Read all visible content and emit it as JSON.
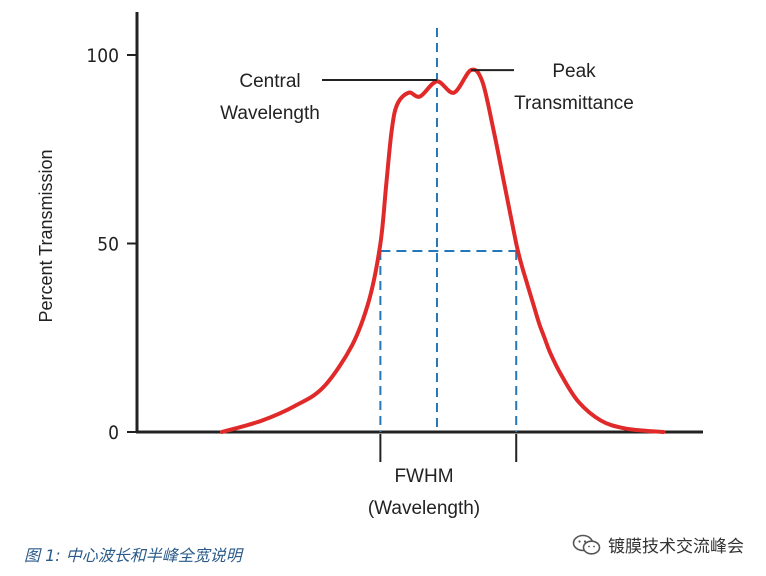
{
  "chart_data": {
    "type": "line",
    "title": "",
    "ylabel": "Percent Transmission",
    "xlabel": "",
    "ylim": [
      0,
      100
    ],
    "yticks": [
      0,
      50,
      100
    ],
    "x_units": "arbitrary wavelength units",
    "xlim": [
      0,
      100
    ],
    "series": [
      {
        "name": "Transmission curve",
        "color": "#e02a2a",
        "x": [
          15,
          22,
          28,
          33,
          38,
          41,
          43,
          44,
          45,
          46,
          48,
          50,
          53,
          56,
          59,
          61,
          63,
          65,
          67,
          68,
          69,
          70,
          71,
          72,
          73,
          75,
          78,
          82,
          86,
          90,
          93
        ],
        "y": [
          0,
          3,
          7,
          12,
          23,
          35,
          50,
          65,
          80,
          87,
          90,
          89,
          93,
          90,
          96,
          93,
          80,
          65,
          50,
          44,
          39,
          34,
          29,
          25,
          21,
          15,
          8,
          3,
          1,
          0.3,
          0
        ]
      }
    ],
    "center_x": 53,
    "fwhm_x": [
      43,
      67
    ],
    "half_max_y": 48,
    "annotations": {
      "central": [
        "Central",
        "Wavelength"
      ],
      "peak": [
        "Peak",
        "Transmittance"
      ],
      "fwhm": [
        "FWHM",
        "(Wavelength)"
      ]
    },
    "tick_labels": [
      "0",
      "50",
      "100"
    ],
    "guide_color": "#2577b8"
  },
  "caption": "图 1: 中心波长和半峰全宽说明",
  "watermark": {
    "text": "镀膜技术交流峰会",
    "icon": "wechat-icon"
  }
}
